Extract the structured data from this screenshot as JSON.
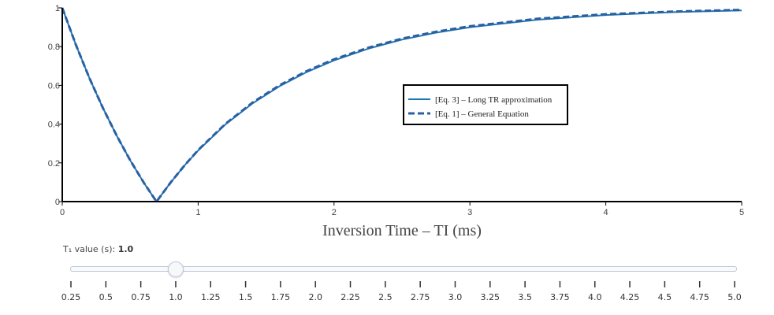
{
  "chart_data": {
    "type": "line",
    "xlabel": "Inversion Time – TI (ms)",
    "ylabel": "",
    "xlim": [
      0,
      5
    ],
    "ylim": [
      0,
      1
    ],
    "x_ticks": [
      0,
      1,
      2,
      3,
      4,
      5
    ],
    "x_tick_labels": [
      "0",
      "1",
      "2",
      "3",
      "4",
      "5"
    ],
    "y_ticks": [
      0,
      0.2,
      0.4,
      0.6,
      0.8,
      1
    ],
    "y_tick_labels": [
      "0",
      "0.2",
      "0.4",
      "0.6",
      "0.8",
      "1"
    ],
    "grid": false,
    "legend_position": "center-right",
    "series": [
      {
        "name": "[Eq. 3] – Long TR approximation",
        "style": "solid",
        "color": "#1f77b4",
        "x": [
          0,
          0.1,
          0.2,
          0.3,
          0.4,
          0.5,
          0.6,
          0.693,
          0.8,
          0.9,
          1.0,
          1.2,
          1.4,
          1.6,
          1.8,
          2.0,
          2.25,
          2.5,
          2.75,
          3.0,
          3.5,
          4.0,
          4.5,
          5.0
        ],
        "y": [
          1,
          0.81,
          0.637,
          0.482,
          0.341,
          0.213,
          0.098,
          0.0,
          0.101,
          0.187,
          0.264,
          0.398,
          0.507,
          0.596,
          0.669,
          0.729,
          0.789,
          0.836,
          0.872,
          0.9,
          0.939,
          0.963,
          0.978,
          0.987
        ]
      },
      {
        "name": "[Eq. 1] – General Equation",
        "style": "dash",
        "color": "#2a5fa0",
        "x": [
          0,
          0.1,
          0.2,
          0.3,
          0.4,
          0.5,
          0.6,
          0.693,
          0.8,
          0.9,
          1.0,
          1.2,
          1.4,
          1.6,
          1.8,
          2.0,
          2.25,
          2.5,
          2.75,
          3.0,
          3.5,
          4.0,
          4.5,
          5.0
        ],
        "y": [
          1,
          0.81,
          0.637,
          0.482,
          0.341,
          0.213,
          0.098,
          0.0,
          0.101,
          0.187,
          0.266,
          0.401,
          0.511,
          0.601,
          0.674,
          0.734,
          0.794,
          0.841,
          0.877,
          0.905,
          0.944,
          0.967,
          0.981,
          0.99
        ]
      }
    ]
  },
  "slider": {
    "label_prefix": "T₁ value (s): ",
    "current_value": "1.0",
    "selected_index": 3,
    "steps": [
      "0.25",
      "0.5",
      "0.75",
      "1.0",
      "1.25",
      "1.5",
      "1.75",
      "2.0",
      "2.25",
      "2.5",
      "2.75",
      "3.0",
      "3.25",
      "3.5",
      "3.75",
      "4.0",
      "4.25",
      "4.5",
      "4.75",
      "5.0"
    ]
  }
}
